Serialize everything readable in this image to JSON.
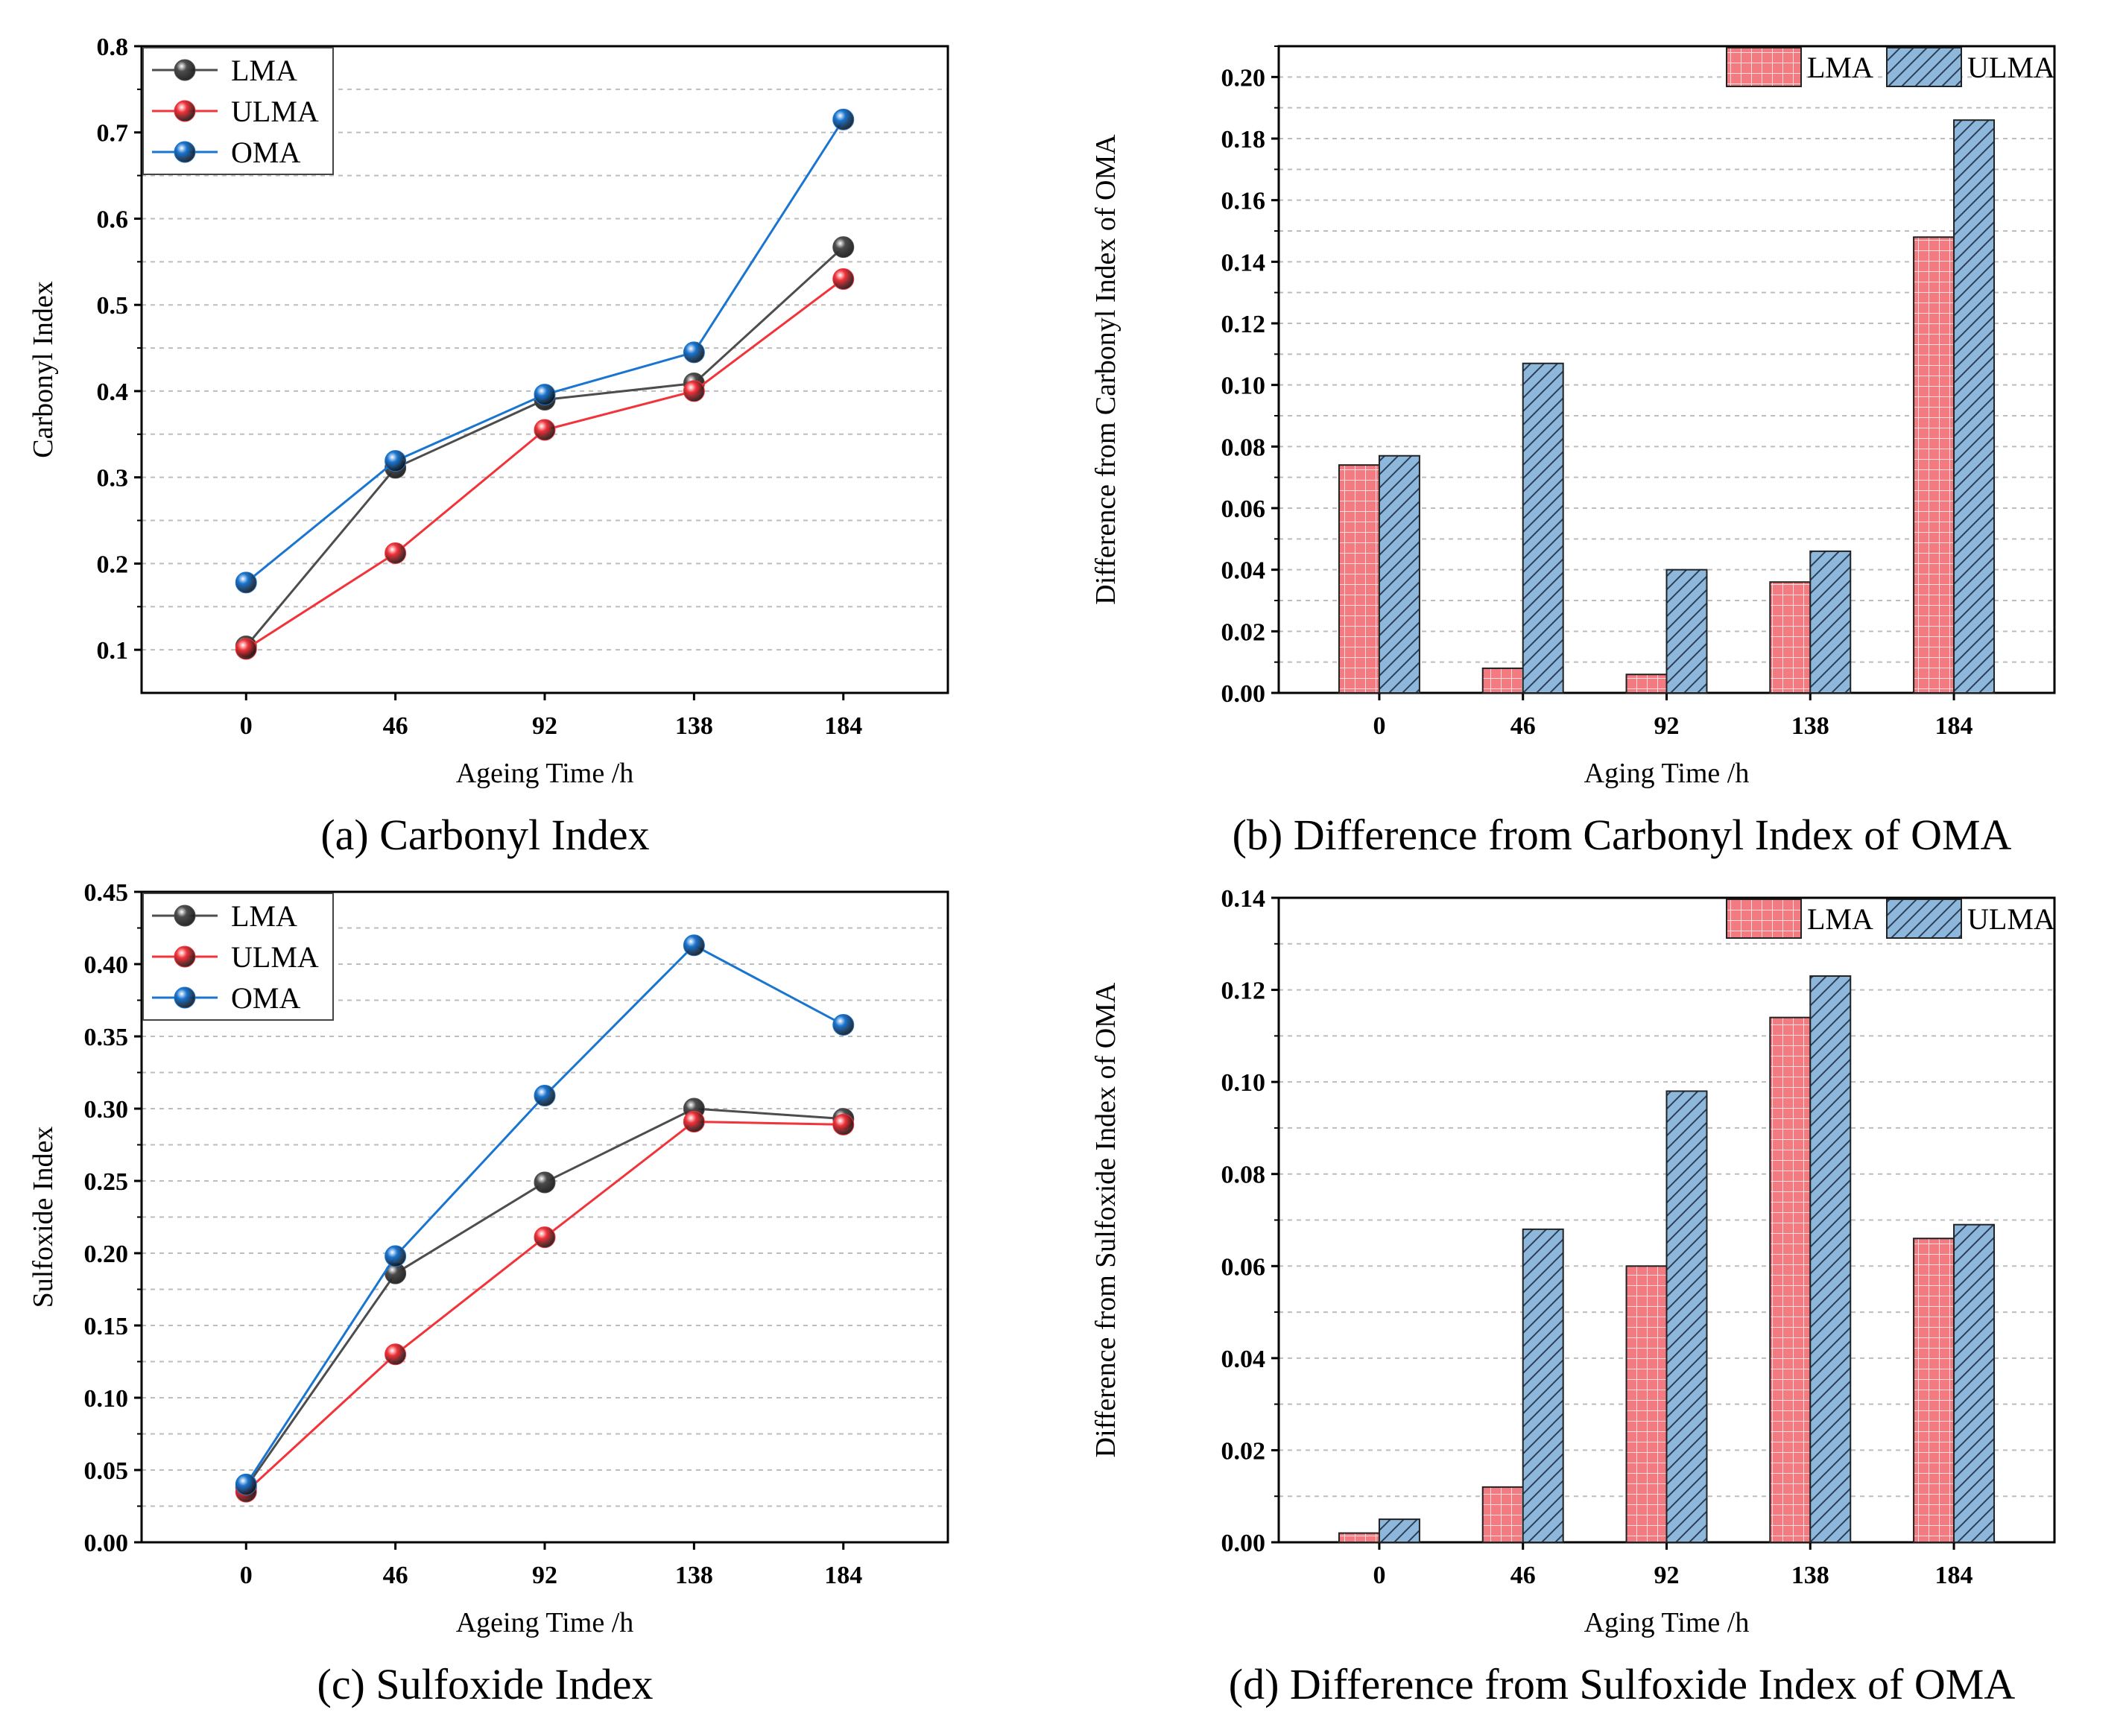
{
  "palette": {
    "LMA": "#4d4d4d",
    "ULMA": "#f2333a",
    "OMA": "#1a75d1",
    "bar_LMA": "#f27a80",
    "bar_ULMA": "#8db8dc"
  },
  "chart_data": [
    {
      "id": "a",
      "type": "line",
      "caption": "(a) Carbonyl Index",
      "xlabel": "Ageing Time /h",
      "ylabel": "Carbonyl Index",
      "categories": [
        "0",
        "46",
        "92",
        "138",
        "184"
      ],
      "ylim": [
        0.05,
        0.8
      ],
      "yticks": [
        0.1,
        0.2,
        0.3,
        0.4,
        0.5,
        0.6,
        0.7,
        0.8
      ],
      "ytick_labels": [
        "0.1",
        "0.2",
        "0.3",
        "0.4",
        "0.5",
        "0.6",
        "0.7",
        "0.8"
      ],
      "grid": true,
      "legend_position": "top-left",
      "series": [
        {
          "name": "LMA",
          "color_key": "LMA",
          "values": [
            0.104,
            0.311,
            0.39,
            0.409,
            0.567
          ]
        },
        {
          "name": "ULMA",
          "color_key": "ULMA",
          "values": [
            0.101,
            0.212,
            0.355,
            0.4,
            0.53
          ]
        },
        {
          "name": "OMA",
          "color_key": "OMA",
          "values": [
            0.178,
            0.319,
            0.396,
            0.445,
            0.715
          ]
        }
      ]
    },
    {
      "id": "b",
      "type": "bar",
      "caption": "(b) Difference from Carbonyl Index of OMA",
      "xlabel": "Aging Time /h",
      "ylabel": "Difference from Carbonyl Index of OMA",
      "categories": [
        "0",
        "46",
        "92",
        "138",
        "184"
      ],
      "ylim": [
        0,
        0.21
      ],
      "yticks": [
        0,
        0.02,
        0.04,
        0.06,
        0.08,
        0.1,
        0.12,
        0.14,
        0.16,
        0.18,
        0.2
      ],
      "ytick_labels": [
        "0.00",
        "0.02",
        "0.04",
        "0.06",
        "0.08",
        "0.10",
        "0.12",
        "0.14",
        "0.16",
        "0.18",
        "0.20"
      ],
      "grid": true,
      "legend_position": "top-right",
      "series": [
        {
          "name": "LMA",
          "color_key": "bar_LMA",
          "pattern": "grid",
          "values": [
            0.074,
            0.008,
            0.006,
            0.036,
            0.148
          ]
        },
        {
          "name": "ULMA",
          "color_key": "bar_ULMA",
          "pattern": "hatch",
          "values": [
            0.077,
            0.107,
            0.04,
            0.046,
            0.186
          ]
        }
      ]
    },
    {
      "id": "c",
      "type": "line",
      "caption": "(c) Sulfoxide Index",
      "xlabel": "Ageing Time /h",
      "ylabel": "Sulfoxide Index",
      "categories": [
        "0",
        "46",
        "92",
        "138",
        "184"
      ],
      "ylim": [
        0,
        0.45
      ],
      "yticks": [
        0,
        0.05,
        0.1,
        0.15,
        0.2,
        0.25,
        0.3,
        0.35,
        0.4,
        0.45
      ],
      "ytick_labels": [
        "0.00",
        "0.05",
        "0.10",
        "0.15",
        "0.20",
        "0.25",
        "0.30",
        "0.35",
        "0.40",
        "0.45"
      ],
      "grid": true,
      "legend_position": "top-left",
      "series": [
        {
          "name": "LMA",
          "color_key": "LMA",
          "values": [
            0.038,
            0.186,
            0.249,
            0.3,
            0.293
          ]
        },
        {
          "name": "ULMA",
          "color_key": "ULMA",
          "values": [
            0.035,
            0.13,
            0.211,
            0.291,
            0.289
          ]
        },
        {
          "name": "OMA",
          "color_key": "OMA",
          "values": [
            0.04,
            0.198,
            0.309,
            0.413,
            0.358
          ]
        }
      ]
    },
    {
      "id": "d",
      "type": "bar",
      "caption": "(d) Difference from Sulfoxide Index of OMA",
      "xlabel": "Aging Time /h",
      "ylabel": "Difference from Sulfoxide Index of OMA",
      "categories": [
        "0",
        "46",
        "92",
        "138",
        "184"
      ],
      "ylim": [
        0,
        0.14
      ],
      "yticks": [
        0,
        0.02,
        0.04,
        0.06,
        0.08,
        0.1,
        0.12,
        0.14
      ],
      "ytick_labels": [
        "0.00",
        "0.02",
        "0.04",
        "0.06",
        "0.08",
        "0.10",
        "0.12",
        "0.14"
      ],
      "grid": true,
      "legend_position": "top-right",
      "series": [
        {
          "name": "LMA",
          "color_key": "bar_LMA",
          "pattern": "grid",
          "values": [
            0.002,
            0.012,
            0.06,
            0.114,
            0.066
          ]
        },
        {
          "name": "ULMA",
          "color_key": "bar_ULMA",
          "pattern": "hatch",
          "values": [
            0.005,
            0.068,
            0.098,
            0.123,
            0.069
          ]
        }
      ]
    }
  ]
}
